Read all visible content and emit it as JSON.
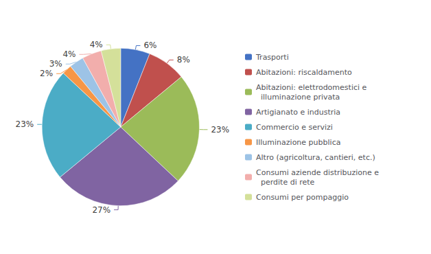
{
  "chart_data": {
    "type": "pie",
    "categories": [
      "Trasporti",
      "Abitazioni: riscaldamento",
      "Abitazioni: elettrodomestici e\n  illuminazione privata",
      "Artigianato e industria",
      "Commercio e servizi",
      "Illuminazione pubblica",
      "Altro (agricoltura, cantieri, etc.)",
      "Consumi aziende distribuzione e\n  perdite di rete",
      "Consumi per pompaggio"
    ],
    "values": [
      6,
      8,
      23,
      27,
      23,
      2,
      3,
      4,
      4
    ],
    "value_labels": [
      "6%",
      "8%",
      "23%",
      "27%",
      "23%",
      "2%",
      "3%",
      "4%",
      "4%"
    ],
    "colors": [
      "#4472C4",
      "#C0504D",
      "#9BBB59",
      "#8064A2",
      "#4BACC6",
      "#F79646",
      "#9DC3E6",
      "#F2AEAC",
      "#D4E09A"
    ],
    "data_labels": true,
    "legend": "right"
  }
}
